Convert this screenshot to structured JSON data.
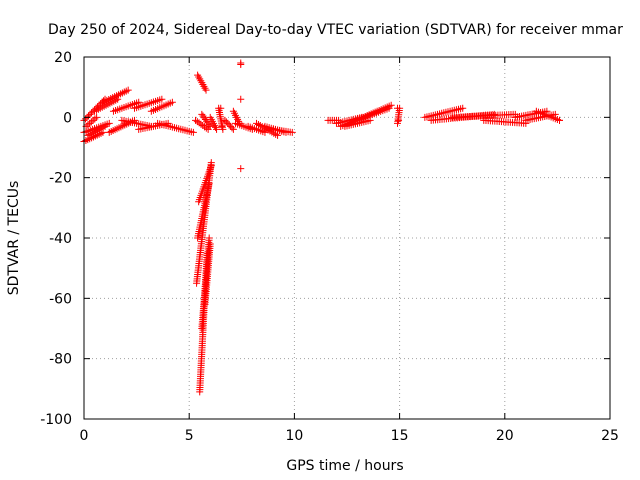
{
  "chart_data": {
    "type": "scatter",
    "title": "Day 250 of 2024, Sidereal Day-to-day VTEC variation (SDTVAR) for receiver mmar",
    "xlabel": "GPS time / hours",
    "ylabel": "SDTVAR / TECUs",
    "xlim": [
      0,
      25
    ],
    "ylim": [
      -100,
      20
    ],
    "xticks": [
      0,
      5,
      10,
      15,
      20,
      25
    ],
    "yticks": [
      -100,
      -80,
      -60,
      -40,
      -20,
      0,
      20
    ],
    "grid": true,
    "marker": "+",
    "color": "#ff0000",
    "series": [
      {
        "name": "SDTVAR",
        "tracks": [
          {
            "x0": 0.0,
            "x1": 1.0,
            "y0": -1,
            "y1": 6
          },
          {
            "x0": 0.0,
            "x1": 1.2,
            "y0": -5,
            "y1": -2
          },
          {
            "x0": 0.0,
            "x1": 0.9,
            "y0": -8,
            "y1": -5
          },
          {
            "x0": 0.1,
            "x1": 0.6,
            "y0": -3,
            "y1": 0
          },
          {
            "x0": 0.2,
            "x1": 1.0,
            "y0": -6,
            "y1": -3
          },
          {
            "x0": 0.5,
            "x1": 1.6,
            "y0": 2,
            "y1": 6
          },
          {
            "x0": 0.9,
            "x1": 2.1,
            "y0": 5,
            "y1": 9
          },
          {
            "x0": 1.4,
            "x1": 2.6,
            "y0": 2,
            "y1": 5
          },
          {
            "x0": 1.2,
            "x1": 2.4,
            "y0": -5,
            "y1": -1
          },
          {
            "x0": 1.8,
            "x1": 3.2,
            "y0": -1,
            "y1": -3
          },
          {
            "x0": 2.4,
            "x1": 3.7,
            "y0": 3,
            "y1": 6
          },
          {
            "x0": 3.2,
            "x1": 4.2,
            "y0": 2,
            "y1": 5
          },
          {
            "x0": 2.6,
            "x1": 4.0,
            "y0": -4,
            "y1": -2
          },
          {
            "x0": 3.5,
            "x1": 5.2,
            "y0": -2,
            "y1": -5
          },
          {
            "x0": 5.3,
            "x1": 5.9,
            "y0": -1,
            "y1": -4
          },
          {
            "x0": 5.4,
            "x1": 5.8,
            "y0": 14,
            "y1": 9
          },
          {
            "x0": 5.6,
            "x1": 6.0,
            "y0": 1,
            "y1": -3
          },
          {
            "x0": 6.0,
            "x1": 6.3,
            "y0": 0,
            "y1": -4
          },
          {
            "x0": 6.4,
            "x1": 6.6,
            "y0": 3,
            "y1": -4
          },
          {
            "x0": 6.7,
            "x1": 7.1,
            "y0": -1,
            "y1": -4
          },
          {
            "x0": 7.1,
            "x1": 7.4,
            "y0": 2,
            "y1": -2
          },
          {
            "x0": 7.2,
            "x1": 8.0,
            "y0": -2,
            "y1": -4
          },
          {
            "x0": 7.8,
            "x1": 8.6,
            "y0": -3,
            "y1": -5
          },
          {
            "x0": 8.2,
            "x1": 9.2,
            "y0": -2,
            "y1": -6
          },
          {
            "x0": 8.6,
            "x1": 9.6,
            "y0": -3,
            "y1": -5
          },
          {
            "x0": 9.0,
            "x1": 9.9,
            "y0": -4,
            "y1": -5
          },
          {
            "x0": 5.35,
            "x1": 6.05,
            "y0": -55,
            "y1": -15
          },
          {
            "x0": 5.4,
            "x1": 5.95,
            "y0": -40,
            "y1": -22
          },
          {
            "x0": 5.45,
            "x1": 6.05,
            "y0": -28,
            "y1": -16
          },
          {
            "x0": 5.5,
            "x1": 5.85,
            "y0": -91,
            "y1": -45
          },
          {
            "x0": 5.6,
            "x1": 5.95,
            "y0": -70,
            "y1": -40
          },
          {
            "x0": 5.75,
            "x1": 6.0,
            "y0": -62,
            "y1": -42
          },
          {
            "x0": 11.6,
            "x1": 12.1,
            "y0": -1,
            "y1": -1
          },
          {
            "x0": 12.0,
            "x1": 13.2,
            "y0": -2,
            "y1": 0
          },
          {
            "x0": 12.2,
            "x1": 14.5,
            "y0": -3,
            "y1": 3
          },
          {
            "x0": 12.6,
            "x1": 14.6,
            "y0": -2,
            "y1": 4
          },
          {
            "x0": 12.4,
            "x1": 13.6,
            "y0": -3,
            "y1": -1
          },
          {
            "x0": 14.9,
            "x1": 15.0,
            "y0": -2,
            "y1": 3
          },
          {
            "x0": 16.2,
            "x1": 18.0,
            "y0": 0,
            "y1": 3
          },
          {
            "x0": 16.5,
            "x1": 19.5,
            "y0": -1,
            "y1": 1
          },
          {
            "x0": 17.5,
            "x1": 20.5,
            "y0": 0,
            "y1": 1
          },
          {
            "x0": 19.0,
            "x1": 21.0,
            "y0": -1,
            "y1": -2
          },
          {
            "x0": 20.5,
            "x1": 22.0,
            "y0": 0,
            "y1": 2
          },
          {
            "x0": 21.5,
            "x1": 22.6,
            "y0": 2,
            "y1": -1
          },
          {
            "x0": 21.0,
            "x1": 22.4,
            "y0": -1,
            "y1": 1
          }
        ],
        "points": [
          {
            "x": 7.45,
            "y": 18
          },
          {
            "x": 7.45,
            "y": 17.5
          },
          {
            "x": 7.45,
            "y": 6
          },
          {
            "x": 7.45,
            "y": -17
          },
          {
            "x": 6.5,
            "y": 3
          },
          {
            "x": 6.55,
            "y": -3
          },
          {
            "x": 14.9,
            "y": 3
          },
          {
            "x": 14.95,
            "y": -1
          },
          {
            "x": 22.6,
            "y": -1
          }
        ]
      }
    ]
  }
}
